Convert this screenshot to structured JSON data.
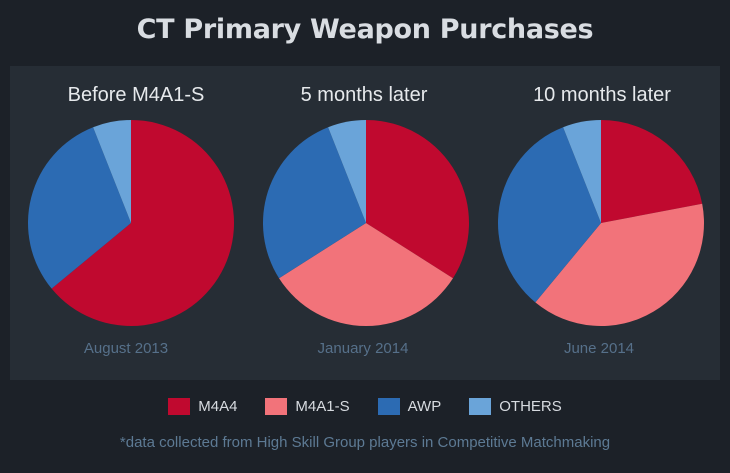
{
  "chart_data": {
    "type": "pie",
    "title": "CT Primary Weapon Purchases",
    "series_order": [
      "M4A4",
      "M4A1-S",
      "AWP",
      "OTHERS"
    ],
    "colors": {
      "M4A4": "#c0092f",
      "M4A1-S": "#f2737a",
      "AWP": "#2c6bb3",
      "OTHERS": "#6aa4d9"
    },
    "pies": [
      {
        "title": "Before M4A1-S",
        "date": "August 2013",
        "values": [
          0.64,
          0.0,
          0.3,
          0.06
        ]
      },
      {
        "title": "5 months later",
        "date": "January 2014",
        "values": [
          0.34,
          0.32,
          0.28,
          0.06
        ]
      },
      {
        "title": "10 months later",
        "date": "June 2014",
        "values": [
          0.22,
          0.39,
          0.33,
          0.06
        ]
      }
    ],
    "legend": [
      "M4A4",
      "M4A1-S",
      "AWP",
      "OTHERS"
    ],
    "legend_position": "bottom",
    "footnote": "*data collected from High Skill Group players in Competitive Matchmaking"
  }
}
